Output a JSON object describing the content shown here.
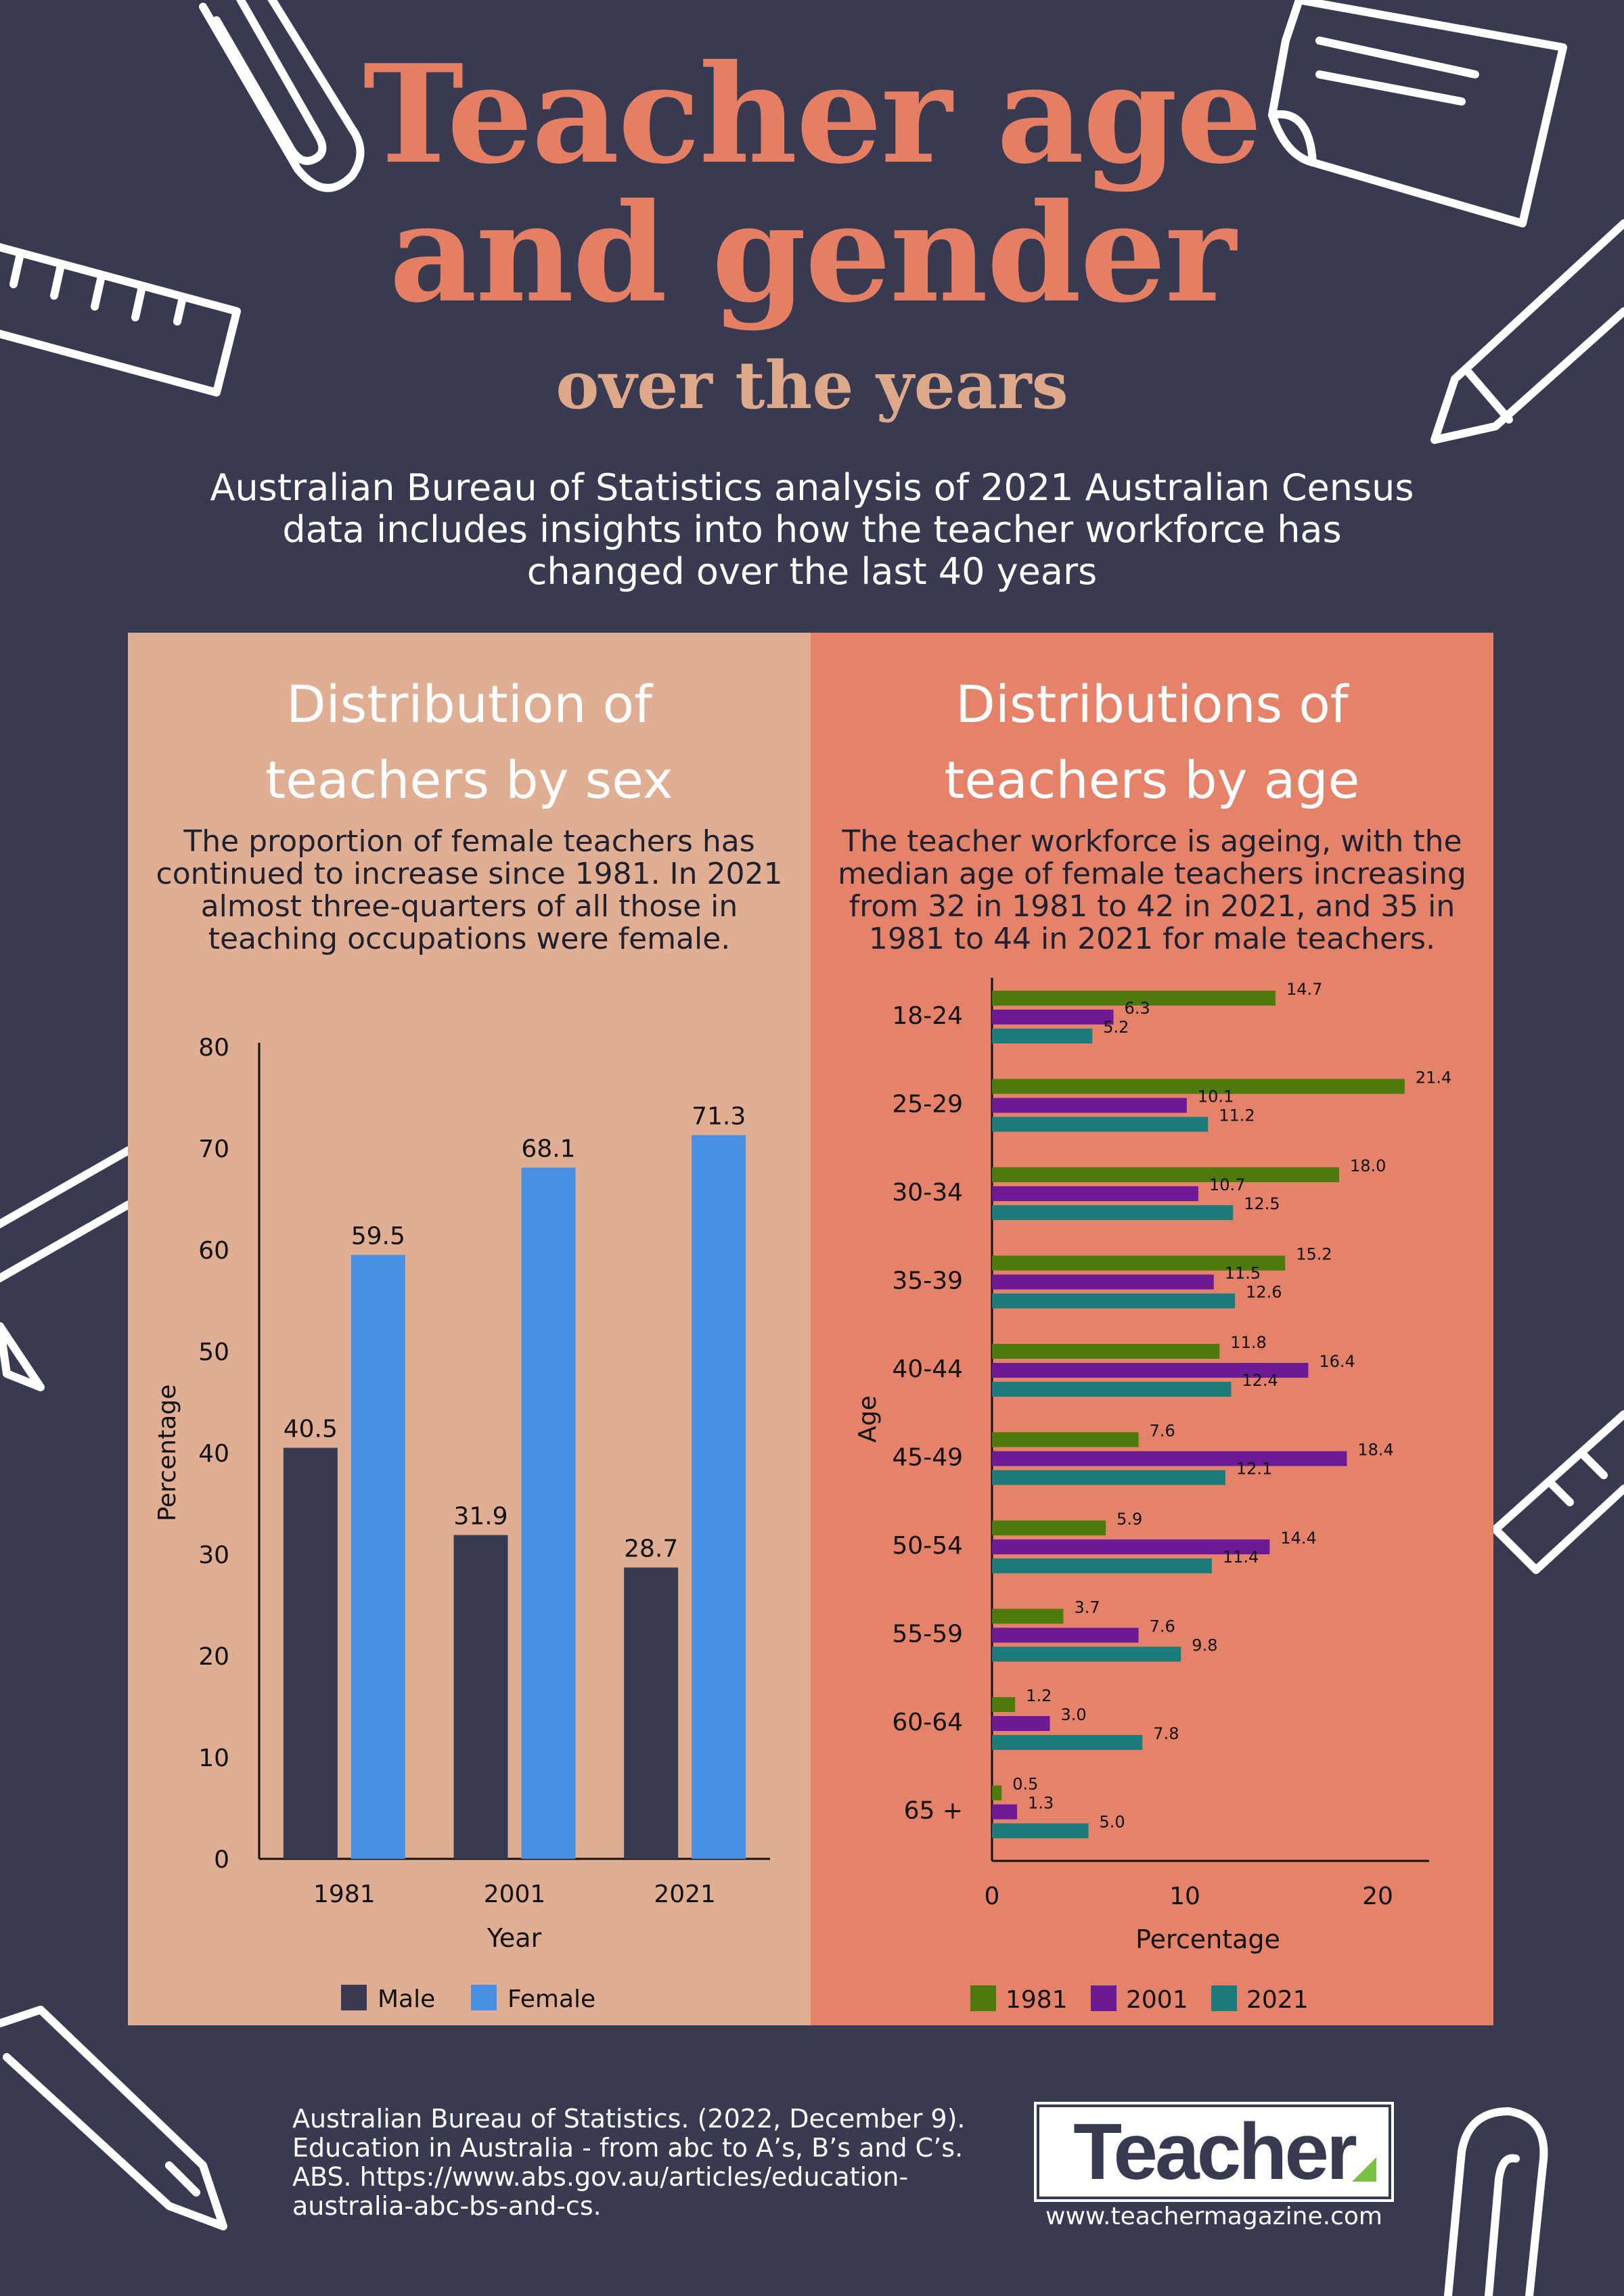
{
  "header": {
    "title_line1": "Teacher age",
    "title_line2": "and gender",
    "subtitle": "over the years",
    "intro": "Australian Bureau of Statistics analysis of 2021 Australian Census data includes insights into how the teacher workforce has changed over the last 40 years"
  },
  "left_panel": {
    "title_line1": "Distribution of",
    "title_line2": "teachers by sex",
    "description": "The proportion of female teachers has continued to increase since 1981. In 2021 almost three-quarters of all those in teaching occupations were female."
  },
  "right_panel": {
    "title_line1": "Distributions of",
    "title_line2": "teachers by age",
    "description": "The teacher workforce is ageing, with the median age of female teachers increasing from 32 in 1981 to 42 in 2021, and 35 in 1981 to 44 in 2021 for male teachers."
  },
  "colors": {
    "background": "#373a50",
    "title": "#e57f64",
    "subtitle": "#dea88a",
    "left_panel": "#dfae93",
    "right_panel": "#e5836a",
    "male": "#373a50",
    "female": "#4a90e2",
    "y1981": "#4d7a0a",
    "y2001": "#6c1a96",
    "y2021": "#1d7b7b"
  },
  "chart_data": [
    {
      "type": "bar",
      "categories": [
        "1981",
        "2001",
        "2021"
      ],
      "series": [
        {
          "name": "Male",
          "values": [
            40.5,
            31.9,
            28.7
          ],
          "color": "#373a50"
        },
        {
          "name": "Female",
          "values": [
            59.5,
            68.1,
            71.3
          ],
          "color": "#4a90e2"
        }
      ],
      "xlabel": "Year",
      "ylabel": "Percentage",
      "ylim": [
        0,
        80
      ],
      "yticks": [
        "0",
        "10",
        "20",
        "30",
        "40",
        "50",
        "60",
        "70",
        "80"
      ],
      "data_labels": true,
      "legend": "bottom",
      "grid": false
    },
    {
      "type": "bar",
      "orientation": "horizontal",
      "categories": [
        "18-24",
        "25-29",
        "30-34",
        "35-39",
        "40-44",
        "45-49",
        "50-54",
        "55-59",
        "60-64",
        "65 +"
      ],
      "series": [
        {
          "name": "1981",
          "values": [
            14.7,
            21.4,
            18.0,
            15.2,
            11.8,
            7.6,
            5.9,
            3.7,
            1.2,
            0.5
          ],
          "labels": [
            "14.7",
            "21.4",
            "18.0",
            "15.2",
            "11.8",
            "7.6",
            "5.9",
            "3.7",
            "1.2",
            "0.5"
          ],
          "color": "#4d7a0a"
        },
        {
          "name": "2001",
          "values": [
            6.3,
            10.1,
            10.7,
            11.5,
            16.4,
            18.4,
            14.4,
            7.6,
            3.0,
            1.3
          ],
          "labels": [
            "6.3",
            "10.1",
            "10.7",
            "11.5",
            "16.4",
            "18.4",
            "14.4",
            "7.6",
            "3.0",
            "1.3"
          ],
          "color": "#6c1a96"
        },
        {
          "name": "2021",
          "values": [
            5.2,
            11.2,
            12.5,
            12.6,
            12.4,
            12.1,
            11.4,
            9.8,
            7.8,
            5.0
          ],
          "labels": [
            "5.2",
            "11.2",
            "12.5",
            "12.6",
            "12.4",
            "12.1",
            "11.4",
            "9.8",
            "7.8",
            "5.0"
          ],
          "color": "#1d7b7b"
        }
      ],
      "xlabel": "Percentage",
      "ylabel": "Age",
      "xlim": [
        0,
        22.5
      ],
      "xticks": [
        "0",
        "10",
        "20"
      ],
      "data_labels": true,
      "legend": "bottom",
      "grid": false
    }
  ],
  "footer": {
    "citation": "Australian Bureau of Statistics. (2022, December 9). Education in Australia - from abc to A’s, B’s and C’s. ABS. https://www.abs.gov.au/articles/education-australia-abc-bs-and-cs.",
    "logo": "Teacher",
    "website": "www.teachermagazine.com"
  }
}
